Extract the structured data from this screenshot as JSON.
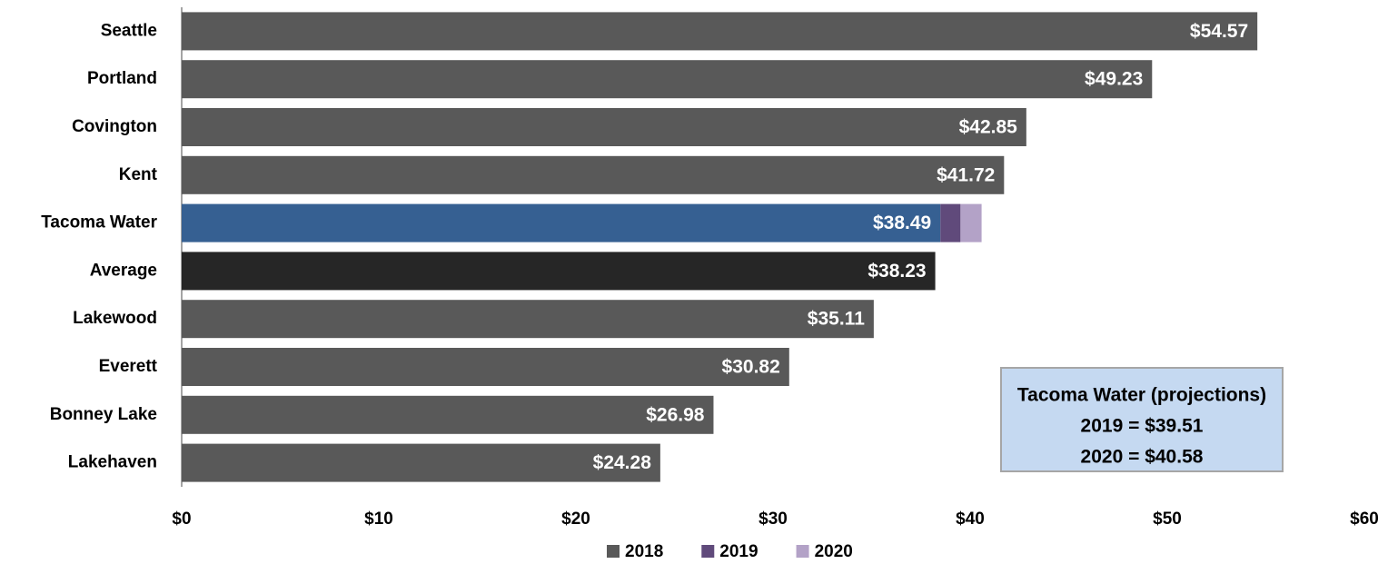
{
  "chart_data": {
    "type": "bar",
    "orientation": "horizontal",
    "stacked": true,
    "categories": [
      "Seattle",
      "Portland",
      "Covington",
      "Kent",
      "Tacoma Water",
      "Average",
      "Lakewood",
      "Everett",
      "Bonney Lake",
      "Lakehaven"
    ],
    "series": [
      {
        "name": "2018",
        "color": "#595959",
        "point_colors": [
          "#595959",
          "#595959",
          "#595959",
          "#595959",
          "#366092",
          "#262626",
          "#595959",
          "#595959",
          "#595959",
          "#595959"
        ],
        "values": [
          54.57,
          49.23,
          42.85,
          41.72,
          38.49,
          38.23,
          35.11,
          30.82,
          26.98,
          24.28
        ],
        "value_labels": [
          "$54.57",
          "$49.23",
          "$42.85",
          "$41.72",
          "$38.49",
          "$38.23",
          "$35.11",
          "$30.82",
          "$26.98",
          "$24.28"
        ]
      },
      {
        "name": "2019",
        "color": "#604a7b",
        "values": [
          null,
          null,
          null,
          null,
          1.02,
          null,
          null,
          null,
          null,
          null
        ]
      },
      {
        "name": "2020",
        "color": "#b3a2c7",
        "values": [
          null,
          null,
          null,
          null,
          1.07,
          null,
          null,
          null,
          null,
          null
        ]
      }
    ],
    "xlim": [
      0,
      60
    ],
    "xticks": [
      {
        "value": 0,
        "label": "$0"
      },
      {
        "value": 10,
        "label": "$10"
      },
      {
        "value": 20,
        "label": "$20"
      },
      {
        "value": 30,
        "label": "$30"
      },
      {
        "value": 40,
        "label": "$40"
      },
      {
        "value": 50,
        "label": "$50"
      },
      {
        "value": 60,
        "label": "$60"
      }
    ],
    "legend": "bottom",
    "annotation": [
      "Tacoma Water (projections)",
      "2019 = $39.51",
      "2020 = $40.58"
    ]
  }
}
